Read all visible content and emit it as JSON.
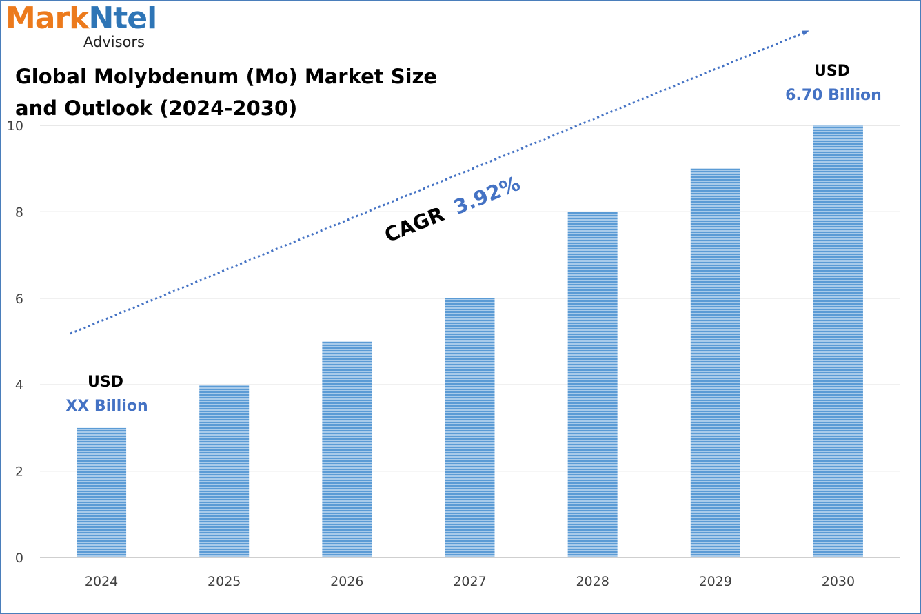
{
  "logo": {
    "brand_part1": "Mark",
    "brand_part2": "Ntel",
    "subtitle": "Advisors"
  },
  "title": {
    "line1": "Global Molybdenum (Mo) Market Size",
    "line2": "and Outlook (2024-2030)"
  },
  "cagr": {
    "label": "CAGR",
    "value": "3.92%"
  },
  "annotations": {
    "start": {
      "top": "USD",
      "bottom": "XX Billion"
    },
    "end": {
      "top": "USD",
      "bottom": "6.70 Billion"
    }
  },
  "colors": {
    "bar": "#9dc3e6",
    "bar_stripe": "#5b9bd5",
    "accent": "#4472c4",
    "grid": "#d9d9d9",
    "axis_text": "#404040"
  },
  "chart_data": {
    "type": "bar",
    "categories": [
      "2024",
      "2025",
      "2026",
      "2027",
      "2028",
      "2029",
      "2030"
    ],
    "values": [
      3,
      4,
      5,
      6,
      8,
      9,
      10
    ],
    "yticks": [
      0,
      2,
      4,
      6,
      8,
      10
    ],
    "ylim": [
      0,
      10
    ],
    "grid": true,
    "legend": "none"
  }
}
